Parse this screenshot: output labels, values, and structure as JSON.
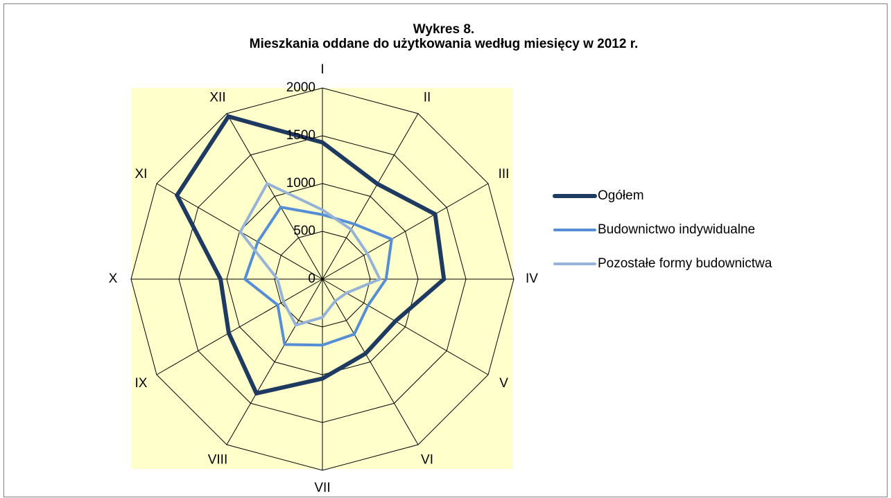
{
  "chart_data": {
    "type": "radar",
    "title": "Wykres 8.",
    "subtitle": "Mieszkania oddane do użytkowania według miesięcy w 2012 r.",
    "categories": [
      "I",
      "II",
      "III",
      "IV",
      "V",
      "VI",
      "VII",
      "VIII",
      "IX",
      "X",
      "XI",
      "XII"
    ],
    "series": [
      {
        "name": "Ogółem",
        "color": "#1f3a60",
        "values": [
          1430,
          1150,
          1360,
          1270,
          880,
          900,
          1040,
          1380,
          1130,
          1065,
          1755,
          1965
        ]
      },
      {
        "name": "Budownictwo indywidualne",
        "color": "#558ed5",
        "values": [
          675,
          665,
          835,
          665,
          550,
          665,
          690,
          790,
          540,
          810,
          780,
          870
        ]
      },
      {
        "name": "Pozostałe formy budownictwa",
        "color": "#95b3d7",
        "values": [
          725,
          600,
          540,
          600,
          290,
          265,
          400,
          555,
          470,
          470,
          990,
          1155
        ]
      }
    ],
    "ylim": [
      0,
      2000
    ],
    "yticks": [
      0,
      500,
      1000,
      1500,
      2000
    ],
    "grid": true,
    "legend": "right"
  }
}
